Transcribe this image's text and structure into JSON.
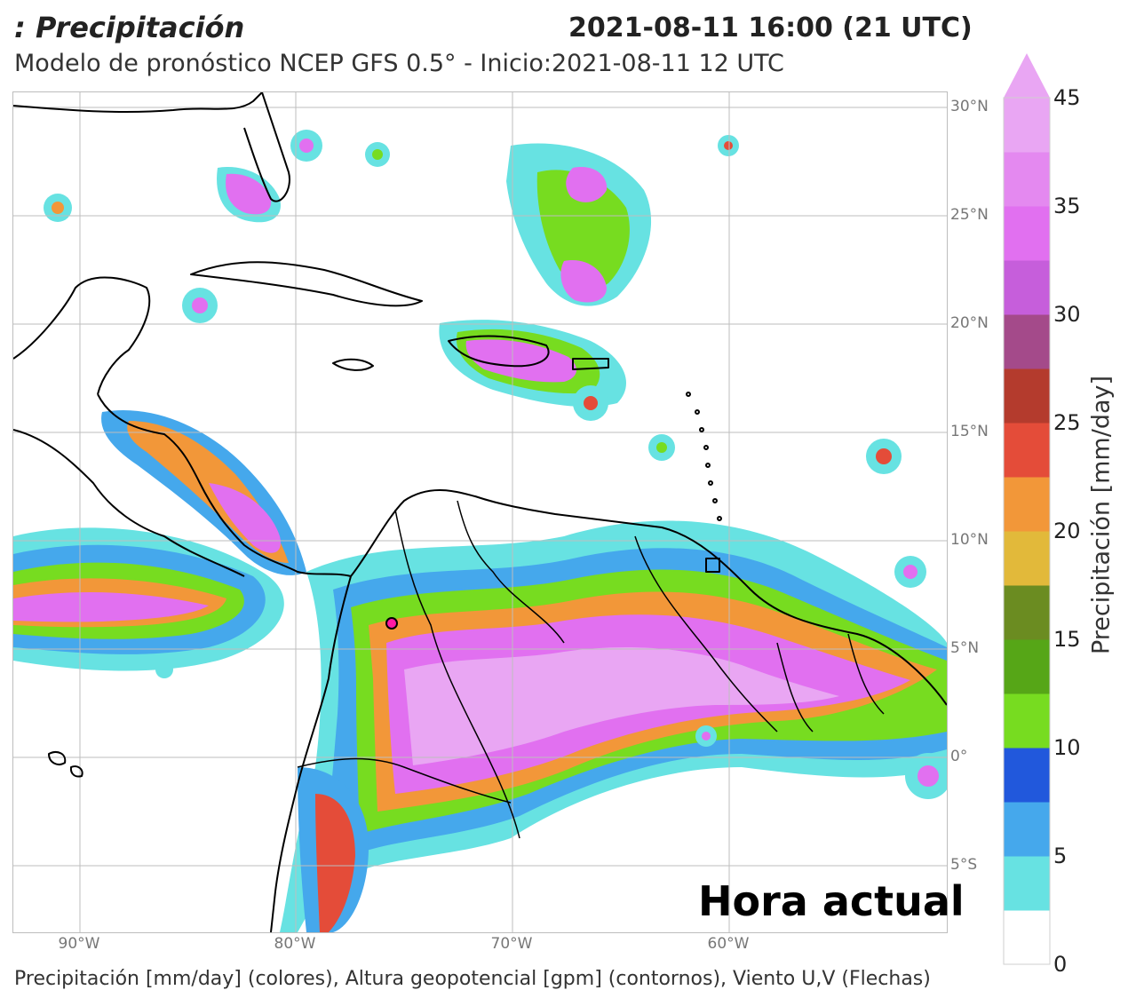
{
  "header": {
    "title": ": Precipitación",
    "datetime": "2021-08-11 16:00 (21 UTC)",
    "subtitle": "Modelo de pronóstico NCEP GFS 0.5° - Inicio:2021-08-11 12 UTC"
  },
  "map": {
    "lat_labels": [
      "30°N",
      "25°N",
      "20°N",
      "15°N",
      "10°N",
      "5°N",
      "0°",
      "5°S"
    ],
    "lon_labels": [
      "90°W",
      "80°W",
      "70°W",
      "60°W"
    ],
    "stamp": "Hora actual",
    "marker_color": "#ff1aa3"
  },
  "colorbar": {
    "label": "Precipitación [mm/day]",
    "ticks": [
      "0",
      "5",
      "10",
      "15",
      "20",
      "25",
      "30",
      "35",
      "45"
    ],
    "colors": [
      "#ffffff",
      "#67e2e2",
      "#45a8ec",
      "#2158dc",
      "#77dc20",
      "#56a617",
      "#6b8c21",
      "#e2b93a",
      "#f29739",
      "#e44c39",
      "#b43b2d",
      "#a44a8a",
      "#c65edb",
      "#e170f0",
      "#e489f0",
      "#e9a6f3"
    ]
  },
  "footer": {
    "caption": "Precipitación [mm/day] (colores), Altura geopotencial [gpm] (contornos), Viento U,V (Flechas)"
  }
}
